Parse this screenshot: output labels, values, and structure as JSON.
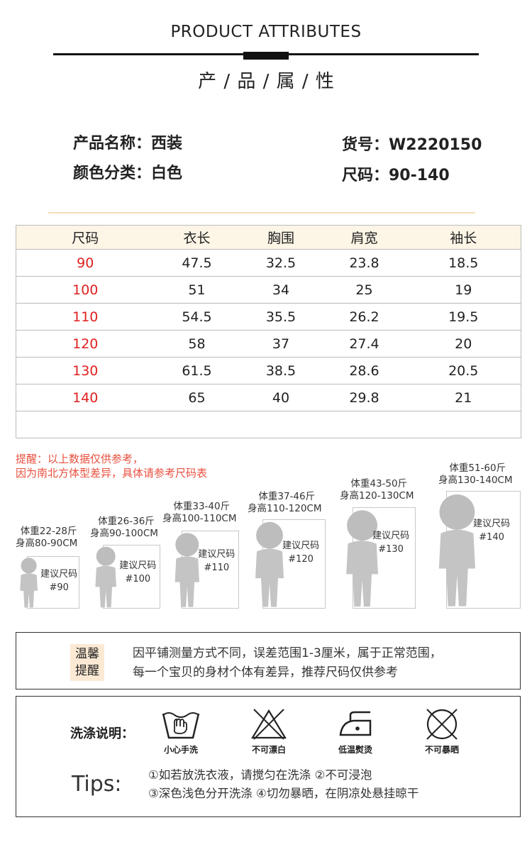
{
  "header": {
    "en_title": "PRODUCT ATTRIBUTES",
    "cn_title": "产 / 品 / 属 / 性"
  },
  "info": {
    "name": "产品名称：西装",
    "color": "颜色分类：白色",
    "item_no": "货号：W2220150",
    "size": "尺码：90-140"
  },
  "size_table": {
    "headers": [
      "尺码",
      "衣长",
      "胸围",
      "肩宽",
      "袖长"
    ],
    "rows": [
      [
        "90",
        "47.5",
        "32.5",
        "23.8",
        "18.5"
      ],
      [
        "100",
        "51",
        "34",
        "25",
        "19"
      ],
      [
        "110",
        "54.5",
        "35.5",
        "26.2",
        "19.5"
      ],
      [
        "120",
        "58",
        "37",
        "27.4",
        "20"
      ],
      [
        "130",
        "61.5",
        "38.5",
        "28.6",
        "20.5"
      ],
      [
        "140",
        "65",
        "40",
        "29.8",
        "21"
      ]
    ]
  },
  "notice": {
    "line1": "提醒：以上数据仅供参考，",
    "line2": "因为南北方体型差异，具体请参考尺码表"
  },
  "kids": [
    {
      "weight": "体重22-28斤",
      "height": "身高80-90CM",
      "rec": "建议尺码",
      "size": "#90"
    },
    {
      "weight": "体重26-36斤",
      "height": "身高90-100CM",
      "rec": "建议尺码",
      "size": "#100"
    },
    {
      "weight": "体重33-40斤",
      "height": "身高100-110CM",
      "rec": "建议尺码",
      "size": "#110"
    },
    {
      "weight": "体重37-46斤",
      "height": "身高110-120CM",
      "rec": "建议尺码",
      "size": "#120"
    },
    {
      "weight": "体重43-50斤",
      "height": "身高120-130CM",
      "rec": "建议尺码",
      "size": "#130"
    },
    {
      "weight": "体重51-60斤",
      "height": "身高130-140CM",
      "rec": "建议尺码",
      "size": "#140"
    }
  ],
  "warm_tip": {
    "badge_1": "温馨",
    "badge_2": "提醒",
    "line1": "因平铺测量方式不同，误差范围1-3厘米，属于正常范围，",
    "line2": "每一个宝贝的身材个体有差异，推荐尺码仅供参考"
  },
  "wash": {
    "label": "洗涤说明：",
    "icons": [
      {
        "icon": "hand-wash-icon",
        "caption": "小心手洗"
      },
      {
        "icon": "no-bleach-icon",
        "caption": "不可漂白"
      },
      {
        "icon": "low-iron-icon",
        "caption": "低温熨烫"
      },
      {
        "icon": "no-sun-dry-icon",
        "caption": "不可暴晒"
      }
    ],
    "tips_label": "Tips:",
    "tip_line1": "①如若放洗衣液，请搅匀在洗涤 ②不可浸泡",
    "tip_line2": "③深色浅色分开洗涤 ④切勿暴晒，在阴凉处悬挂晾干"
  }
}
